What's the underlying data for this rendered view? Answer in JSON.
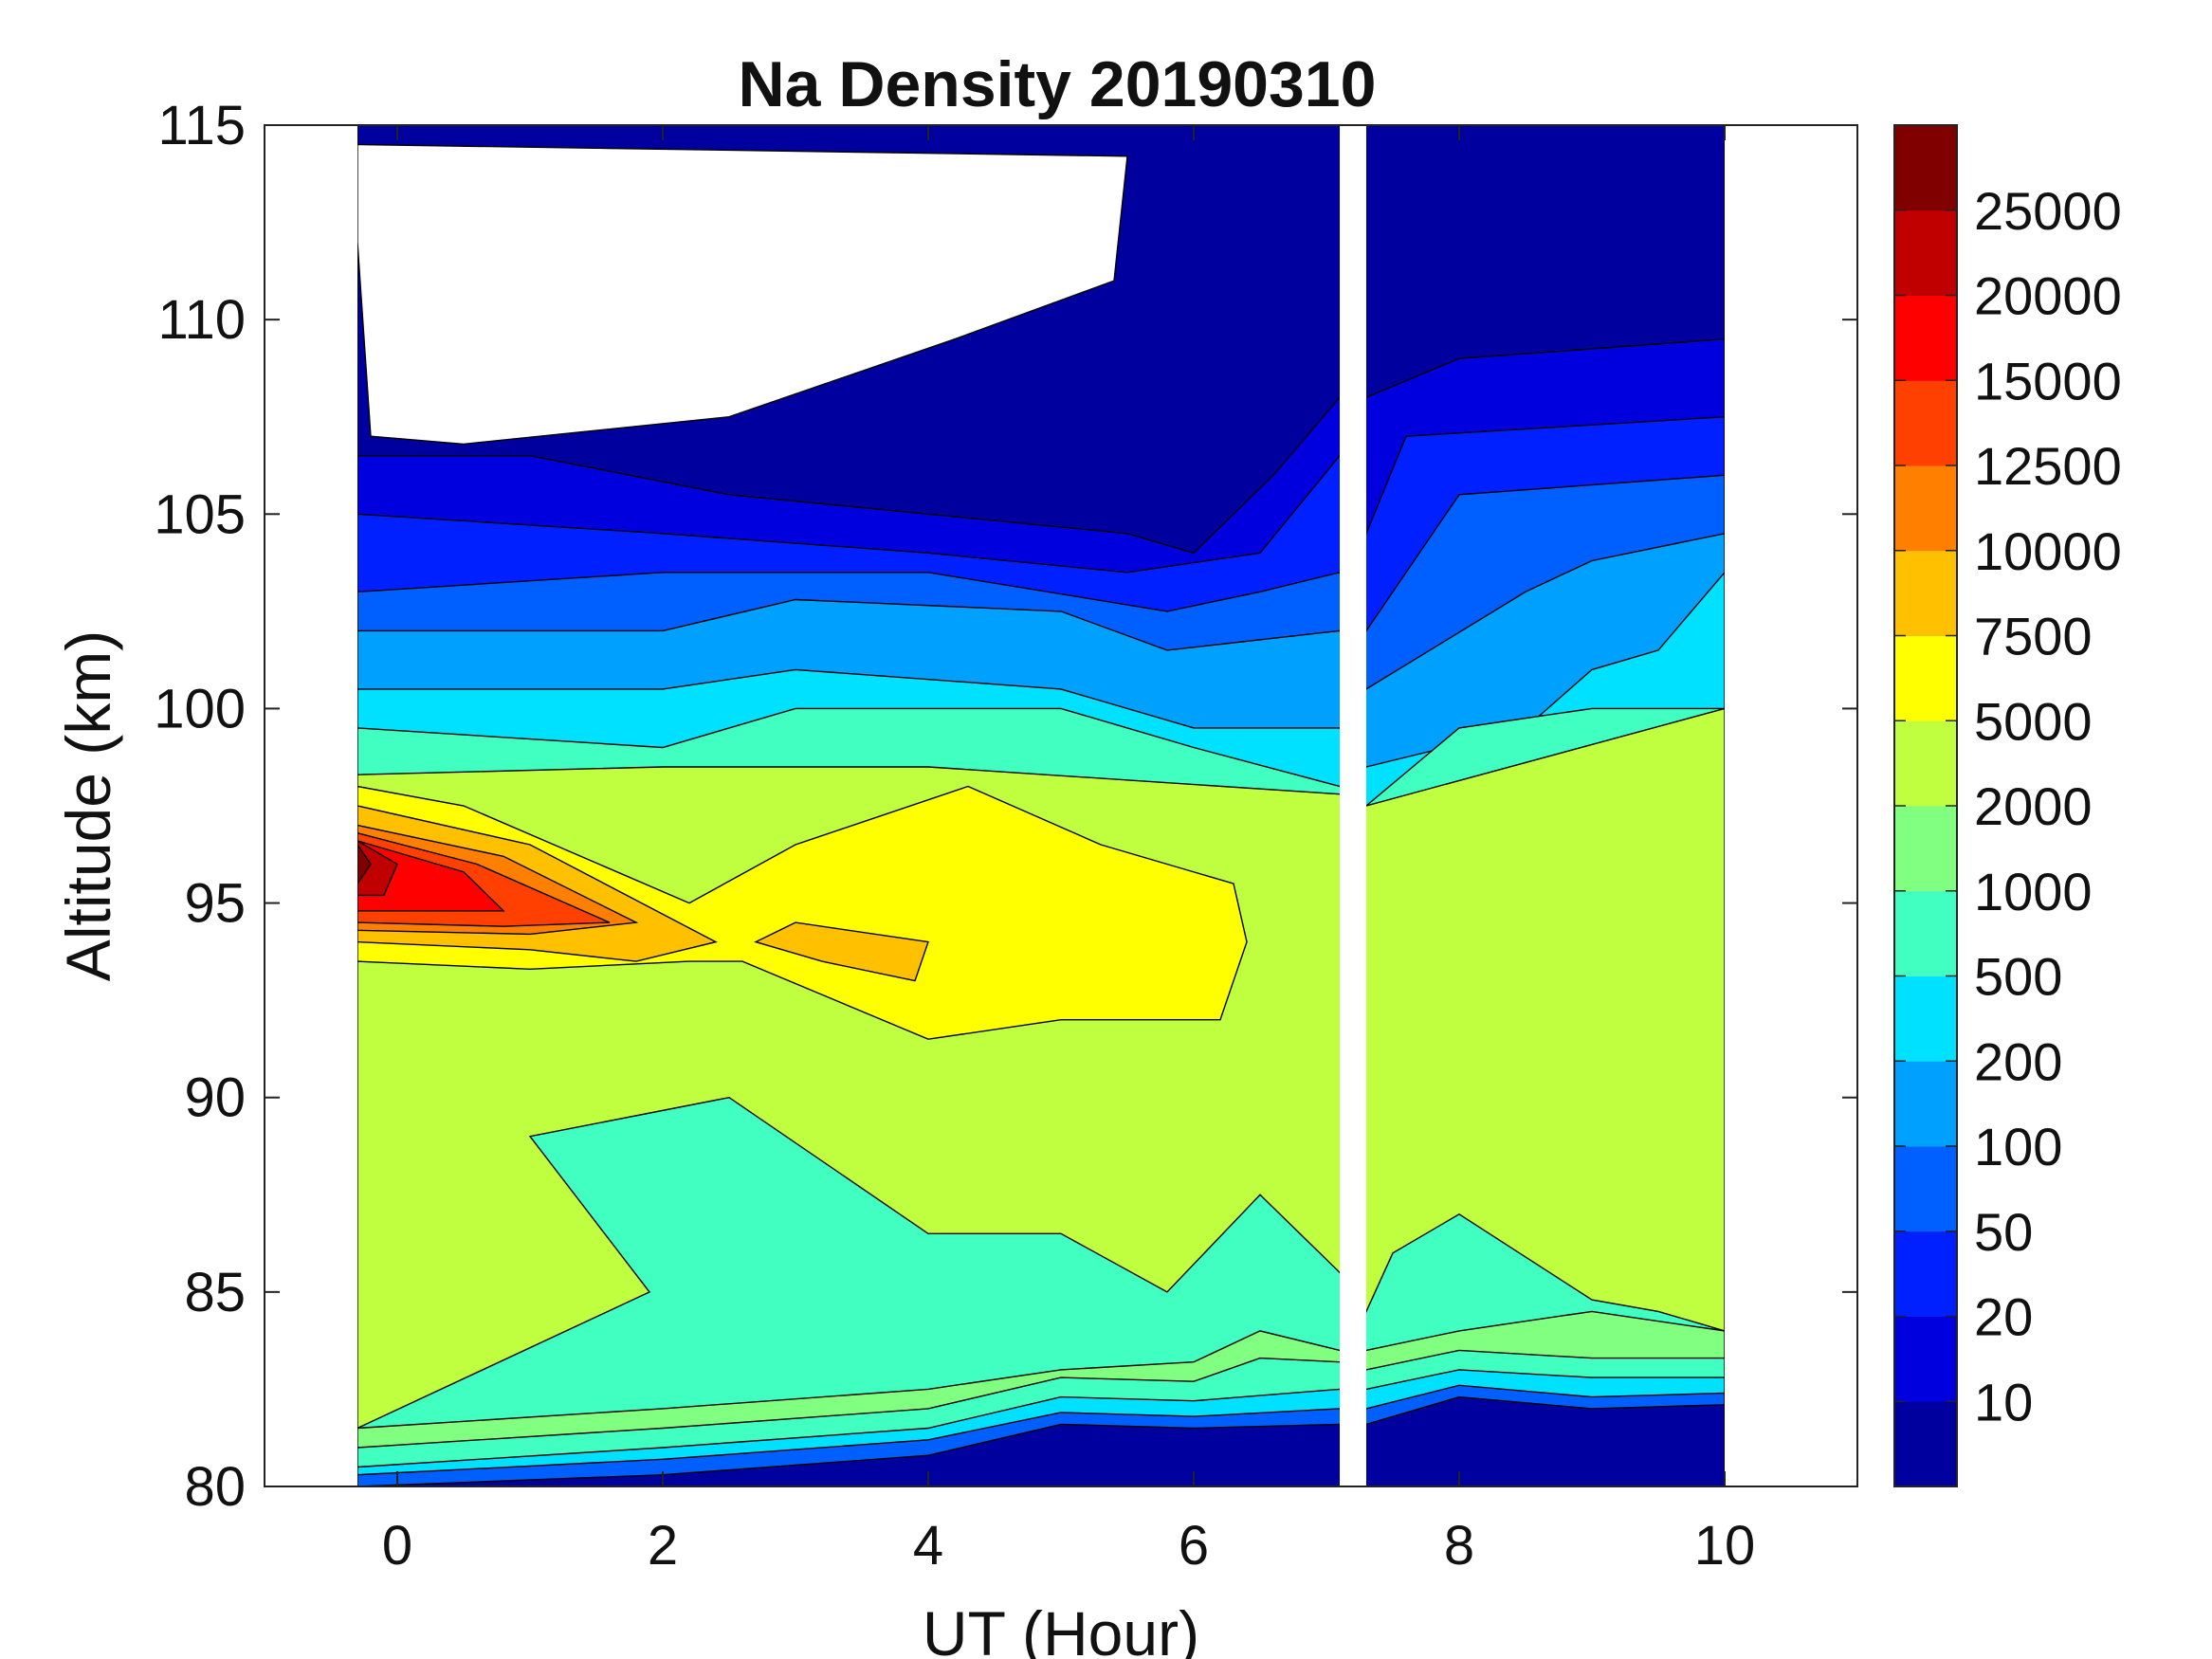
{
  "chart_data": {
    "type": "heatmap",
    "title": "Na Density 20190310",
    "xlabel": "UT (Hour)",
    "ylabel": "Altitude (km)",
    "xlim": [
      -1,
      11
    ],
    "ylim": [
      80,
      115
    ],
    "xticks": [
      0,
      2,
      4,
      6,
      8,
      10
    ],
    "yticks": [
      80,
      85,
      90,
      95,
      100,
      105,
      110,
      115
    ],
    "data_coverage": [
      [
        -0.3,
        7.1
      ],
      [
        7.3,
        10.0
      ]
    ],
    "colorbar": {
      "levels": [
        0,
        10,
        20,
        50,
        100,
        200,
        500,
        1000,
        2000,
        5000,
        7500,
        10000,
        12500,
        15000,
        20000,
        25000,
        30000
      ],
      "tick_labels": [
        "10",
        "20",
        "50",
        "100",
        "200",
        "500",
        "1000",
        "2000",
        "5000",
        "7500",
        "10000",
        "12500",
        "15000",
        "20000",
        "25000"
      ],
      "colors": [
        "#00009f",
        "#0000df",
        "#0020ff",
        "#0060ff",
        "#00a0ff",
        "#00e0ff",
        "#40ffc0",
        "#80ff80",
        "#c0ff40",
        "#ffff00",
        "#ffc000",
        "#ff8000",
        "#ff4000",
        "#ff0000",
        "#c00000",
        "#800000"
      ]
    },
    "contour_bands": [
      {
        "level_index": 0,
        "label": "<10",
        "top": [
          [
            -0.3,
            115
          ],
          [
            10.0,
            115
          ]
        ],
        "bottom": [
          [
            -0.3,
            106.5
          ],
          [
            1,
            106.5
          ],
          [
            2.5,
            105.5
          ],
          [
            4,
            105
          ],
          [
            5.5,
            104.5
          ],
          [
            6,
            104
          ],
          [
            6.6,
            106
          ],
          [
            7.1,
            108
          ],
          [
            7.3,
            108
          ],
          [
            8,
            109
          ],
          [
            10,
            109.5
          ]
        ]
      },
      {
        "level_index": 1,
        "label": "10-20",
        "top": [
          [
            -0.3,
            106.5
          ],
          [
            10,
            109.5
          ]
        ],
        "bottom": [
          [
            -0.3,
            105
          ],
          [
            2,
            104.5
          ],
          [
            4,
            104
          ],
          [
            5.5,
            103.5
          ],
          [
            6.5,
            104
          ],
          [
            7.1,
            106.5
          ],
          [
            7.3,
            104.5
          ],
          [
            7.6,
            107
          ],
          [
            10,
            107.5
          ]
        ]
      },
      {
        "level_index": 2,
        "label": "20-50",
        "top": [
          [
            -0.3,
            105
          ],
          [
            10,
            107.5
          ]
        ],
        "bottom": [
          [
            -0.3,
            103
          ],
          [
            2,
            103.5
          ],
          [
            4,
            103.5
          ],
          [
            5.8,
            102.5
          ],
          [
            6.5,
            103
          ],
          [
            7.1,
            103.5
          ],
          [
            7.3,
            102
          ],
          [
            8,
            105.5
          ],
          [
            10,
            106
          ]
        ]
      },
      {
        "level_index": 3,
        "label": "50-100",
        "top": [
          [
            -0.3,
            103
          ],
          [
            10,
            106
          ]
        ]
      },
      {
        "level_index": 5,
        "label": "200-500",
        "bottom": [
          [
            -0.3,
            100.5
          ],
          [
            2,
            100.5
          ],
          [
            3,
            101
          ],
          [
            5,
            100.5
          ],
          [
            6,
            99.5
          ],
          [
            7.1,
            99.5
          ],
          [
            7.3,
            98.5
          ],
          [
            8.5,
            99.5
          ],
          [
            10,
            100.5
          ]
        ]
      },
      {
        "level_index": 7,
        "label": "1000-2000",
        "top": [
          [
            -0.3,
            99.5
          ],
          [
            2,
            99
          ],
          [
            3,
            100
          ],
          [
            5,
            100
          ],
          [
            7.1,
            98
          ]
        ],
        "bottom": [
          [
            -0.3,
            98.3
          ],
          [
            2,
            98.5
          ],
          [
            4,
            98.5
          ],
          [
            7.1,
            97.8
          ]
        ]
      },
      {
        "level_index": 9,
        "label": "5000-7500",
        "region": [
          [
            2.2,
            95
          ],
          [
            3,
            96.5
          ],
          [
            4.3,
            98
          ],
          [
            5.3,
            96.5
          ],
          [
            6.3,
            95.5
          ],
          [
            6.4,
            94
          ],
          [
            6.2,
            92
          ],
          [
            5,
            92
          ],
          [
            4,
            91.5
          ],
          [
            2.6,
            93.5
          ],
          [
            2.2,
            95
          ]
        ]
      },
      {
        "level_index": 10,
        "label": "7500-10000",
        "region": [
          [
            2.7,
            94
          ],
          [
            3,
            94.5
          ],
          [
            4,
            94
          ],
          [
            3.9,
            93
          ],
          [
            3.2,
            93.5
          ],
          [
            2.7,
            94
          ]
        ]
      },
      {
        "level_index": 15,
        "label": ">25000",
        "region": [
          [
            -0.3,
            96.5
          ],
          [
            -0.2,
            96
          ],
          [
            -0.3,
            95.5
          ]
        ]
      }
    ]
  }
}
